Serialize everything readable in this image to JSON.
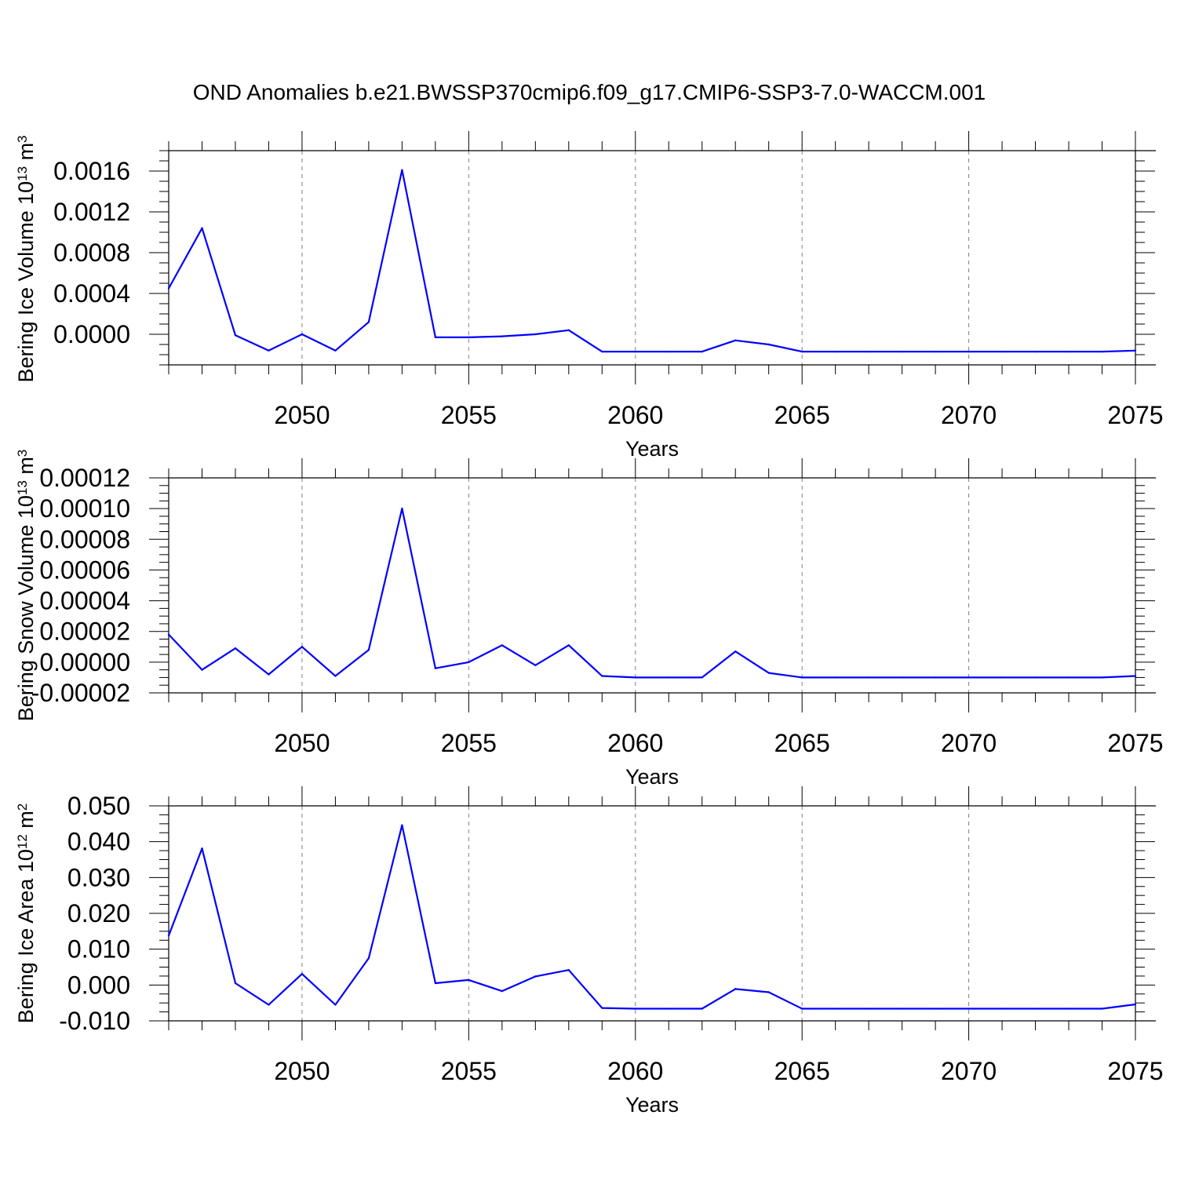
{
  "title": "OND Anomalies b.e21.BWSSP370cmip6.f09_g17.CMIP6-SSP3-7.0-WACCM.001",
  "colors": {
    "series": "#0000ff",
    "axis": "#000000",
    "grid": "#808080",
    "background": "#ffffff"
  },
  "chart_data": [
    {
      "type": "line",
      "title": "",
      "xlabel": "Years",
      "ylabel": "Bering Ice Volume 10",
      "ylabel_exp": "13",
      "ylabel_unit": " m",
      "ylabel_unit_exp": "3",
      "xlim": [
        2046,
        2075
      ],
      "ylim": [
        -0.0003,
        0.0018
      ],
      "x_ticks": [
        2050,
        2055,
        2060,
        2065,
        2070,
        2075
      ],
      "x_tick_labels": [
        "2050",
        "2055",
        "2060",
        "2065",
        "2070",
        "2075"
      ],
      "y_ticks": [
        0.0,
        0.0004,
        0.0008,
        0.0012,
        0.0016
      ],
      "y_tick_labels": [
        "0.0000",
        "0.0004",
        "0.0008",
        "0.0012",
        "0.0016"
      ],
      "grid": "vertical dashed",
      "x": [
        2046,
        2047,
        2048,
        2049,
        2050,
        2051,
        2052,
        2053,
        2054,
        2055,
        2056,
        2057,
        2058,
        2059,
        2060,
        2061,
        2062,
        2063,
        2064,
        2065,
        2066,
        2067,
        2068,
        2069,
        2070,
        2071,
        2072,
        2073,
        2074,
        2075
      ],
      "series": [
        {
          "values": [
            0.00045,
            0.00104,
            -1e-05,
            -0.00016,
            0.0,
            -0.00016,
            0.00012,
            0.00161,
            -3e-05,
            -3e-05,
            -2e-05,
            0.0,
            4e-05,
            -0.00017,
            -0.00017,
            -0.00017,
            -0.00017,
            -6e-05,
            -0.0001,
            -0.00017,
            -0.00017,
            -0.00017,
            -0.00017,
            -0.00017,
            -0.00017,
            -0.00017,
            -0.00017,
            -0.00017,
            -0.00017,
            -0.00016
          ]
        }
      ]
    },
    {
      "type": "line",
      "title": "",
      "xlabel": "Years",
      "ylabel": "Bering Snow Volume 10",
      "ylabel_exp": "13",
      "ylabel_unit": " m",
      "ylabel_unit_exp": "3",
      "xlim": [
        2046,
        2075
      ],
      "ylim": [
        -2e-05,
        0.00012
      ],
      "x_ticks": [
        2050,
        2055,
        2060,
        2065,
        2070,
        2075
      ],
      "x_tick_labels": [
        "2050",
        "2055",
        "2060",
        "2065",
        "2070",
        "2075"
      ],
      "y_ticks": [
        -2e-05,
        0.0,
        2e-05,
        4e-05,
        6e-05,
        8e-05,
        0.0001,
        0.00012
      ],
      "y_tick_labels": [
        "-0.00002",
        "0.00000",
        "0.00002",
        "0.00004",
        "0.00006",
        "0.00008",
        "0.00010",
        "0.00012"
      ],
      "grid": "vertical dashed",
      "x": [
        2046,
        2047,
        2048,
        2049,
        2050,
        2051,
        2052,
        2053,
        2054,
        2055,
        2056,
        2057,
        2058,
        2059,
        2060,
        2061,
        2062,
        2063,
        2064,
        2065,
        2066,
        2067,
        2068,
        2069,
        2070,
        2071,
        2072,
        2073,
        2074,
        2075
      ],
      "series": [
        {
          "values": [
            1.8e-05,
            -5e-06,
            9e-06,
            -8e-06,
            1e-05,
            -9e-06,
            8e-06,
            0.0001,
            -4e-06,
            0.0,
            1.1e-05,
            -2e-06,
            1.1e-05,
            -9e-06,
            -1e-05,
            -1e-05,
            -1e-05,
            7e-06,
            -7e-06,
            -1e-05,
            -1e-05,
            -1e-05,
            -1e-05,
            -1e-05,
            -1e-05,
            -1e-05,
            -1e-05,
            -1e-05,
            -1e-05,
            -9e-06
          ]
        }
      ]
    },
    {
      "type": "line",
      "title": "",
      "xlabel": "Years",
      "ylabel": "Bering Ice Area 10",
      "ylabel_exp": "12",
      "ylabel_unit": " m",
      "ylabel_unit_exp": "2",
      "xlim": [
        2046,
        2075
      ],
      "ylim": [
        -0.01,
        0.05
      ],
      "x_ticks": [
        2050,
        2055,
        2060,
        2065,
        2070,
        2075
      ],
      "x_tick_labels": [
        "2050",
        "2055",
        "2060",
        "2065",
        "2070",
        "2075"
      ],
      "y_ticks": [
        -0.01,
        0.0,
        0.01,
        0.02,
        0.03,
        0.04,
        0.05
      ],
      "y_tick_labels": [
        "-0.010",
        "0.000",
        "0.010",
        "0.020",
        "0.030",
        "0.040",
        "0.050"
      ],
      "grid": "vertical dashed",
      "x": [
        2046,
        2047,
        2048,
        2049,
        2050,
        2051,
        2052,
        2053,
        2054,
        2055,
        2056,
        2057,
        2058,
        2059,
        2060,
        2061,
        2062,
        2063,
        2064,
        2065,
        2066,
        2067,
        2068,
        2069,
        2070,
        2071,
        2072,
        2073,
        2074,
        2075
      ],
      "series": [
        {
          "values": [
            0.0138,
            0.0381,
            0.0005,
            -0.0055,
            0.0031,
            -0.0055,
            0.0075,
            0.0446,
            0.0005,
            0.0014,
            -0.0017,
            0.0024,
            0.0042,
            -0.0064,
            -0.0066,
            -0.0066,
            -0.0066,
            -0.0011,
            -0.002,
            -0.0066,
            -0.0066,
            -0.0066,
            -0.0066,
            -0.0066,
            -0.0066,
            -0.0066,
            -0.0066,
            -0.0066,
            -0.0066,
            -0.0054
          ]
        }
      ]
    }
  ]
}
